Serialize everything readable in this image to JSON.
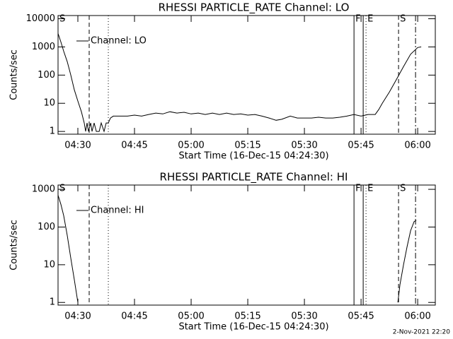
{
  "chart_data": [
    {
      "type": "line",
      "title": "RHESSI PARTICLE_RATE Channel: LO",
      "xlabel": "Start Time (16-Dec-15 04:24:30)",
      "ylabel": "Counts/sec",
      "log_y": true,
      "legend": "top-left",
      "xlim": [
        15,
        6010
      ],
      "ylim": [
        0.8,
        13000
      ],
      "xticks": [
        {
          "value": 330,
          "label": "04:30"
        },
        {
          "value": 1230,
          "label": "04:45"
        },
        {
          "value": 2130,
          "label": "05:00"
        },
        {
          "value": 3030,
          "label": "05:15"
        },
        {
          "value": 3930,
          "label": "05:30"
        },
        {
          "value": 4830,
          "label": "05:45"
        },
        {
          "value": 5730,
          "label": "06:00"
        }
      ],
      "yticks": [
        1,
        10,
        100,
        1000,
        10000
      ],
      "x": [
        15,
        60,
        105,
        161,
        218,
        274,
        330,
        386,
        431,
        454,
        476,
        499,
        533,
        555,
        589,
        623,
        668,
        701,
        746,
        780,
        814,
        848,
        893,
        1005,
        1118,
        1230,
        1343,
        1455,
        1568,
        1680,
        1793,
        1905,
        2018,
        2130,
        2243,
        2355,
        2468,
        2580,
        2693,
        2805,
        2918,
        3030,
        3143,
        3255,
        3368,
        3480,
        3570,
        3705,
        3818,
        3930,
        4043,
        4155,
        4268,
        4380,
        4493,
        4605,
        4718,
        4830,
        4943,
        5055,
        5111,
        5168,
        5280,
        5393,
        5505,
        5618,
        5730,
        5786
      ],
      "series": [
        {
          "name": "Channel: LO",
          "color": "#000000",
          "values": [
            3000,
            1500,
            700,
            300,
            100,
            30,
            12,
            5,
            2,
            1,
            2,
            1,
            2,
            1,
            2,
            1,
            1,
            2,
            1,
            2,
            2,
            3,
            3.5,
            3.5,
            3.5,
            3.8,
            3.5,
            4,
            4.5,
            4.2,
            5,
            4.5,
            4.8,
            4.2,
            4.5,
            4,
            4.5,
            4,
            4.5,
            4,
            4.2,
            3.8,
            4,
            3.5,
            3,
            2.5,
            2.7,
            3.5,
            3,
            3,
            3,
            3.2,
            3,
            3,
            3.2,
            3.5,
            4,
            3.5,
            4,
            4,
            6,
            10,
            25,
            70,
            200,
            550,
            950,
            1000
          ]
        }
      ],
      "markers": [
        {
          "x": 15,
          "style": "none",
          "label": "S"
        },
        {
          "x": 510,
          "style": "dashed"
        },
        {
          "x": 814,
          "style": "dotted"
        },
        {
          "x": 4718,
          "style": "solid",
          "label": "F"
        },
        {
          "x": 4864,
          "style": "solid"
        },
        {
          "x": 4909,
          "style": "dotted",
          "label": "E"
        },
        {
          "x": 5426,
          "style": "dashed",
          "label": "S"
        },
        {
          "x": 5696,
          "style": "dashdot"
        }
      ]
    },
    {
      "type": "line",
      "title": "RHESSI PARTICLE_RATE Channel: HI",
      "xlabel": "Start Time (16-Dec-15 04:24:30)",
      "ylabel": "Counts/sec",
      "log_y": true,
      "legend": "top-left",
      "xlim": [
        15,
        6010
      ],
      "ylim": [
        0.85,
        1300
      ],
      "xticks": [
        {
          "value": 330,
          "label": "04:30"
        },
        {
          "value": 1230,
          "label": "04:45"
        },
        {
          "value": 2130,
          "label": "05:00"
        },
        {
          "value": 3030,
          "label": "05:15"
        },
        {
          "value": 3930,
          "label": "05:30"
        },
        {
          "value": 4830,
          "label": "05:45"
        },
        {
          "value": 5730,
          "label": "06:00"
        }
      ],
      "yticks": [
        1,
        10,
        100,
        1000
      ],
      "x": [
        15,
        60,
        105,
        161,
        218,
        274,
        330,
        2130,
        5415,
        5449,
        5505,
        5561,
        5618,
        5674,
        5707
      ],
      "series": [
        {
          "name": "Channel: HI",
          "color": "#000000",
          "values": [
            700,
            400,
            200,
            60,
            15,
            4,
            1,
            null,
            1,
            3,
            10,
            30,
            80,
            140,
            150
          ]
        }
      ],
      "markers": [
        {
          "x": 15,
          "style": "none",
          "label": "S"
        },
        {
          "x": 510,
          "style": "dashed"
        },
        {
          "x": 814,
          "style": "dotted"
        },
        {
          "x": 4718,
          "style": "solid",
          "label": "F"
        },
        {
          "x": 4864,
          "style": "solid"
        },
        {
          "x": 4909,
          "style": "dotted",
          "label": "E"
        },
        {
          "x": 5426,
          "style": "dashed",
          "label": "S"
        },
        {
          "x": 5696,
          "style": "dashdot"
        }
      ]
    }
  ],
  "footer": "2-Nov-2021 22:20"
}
